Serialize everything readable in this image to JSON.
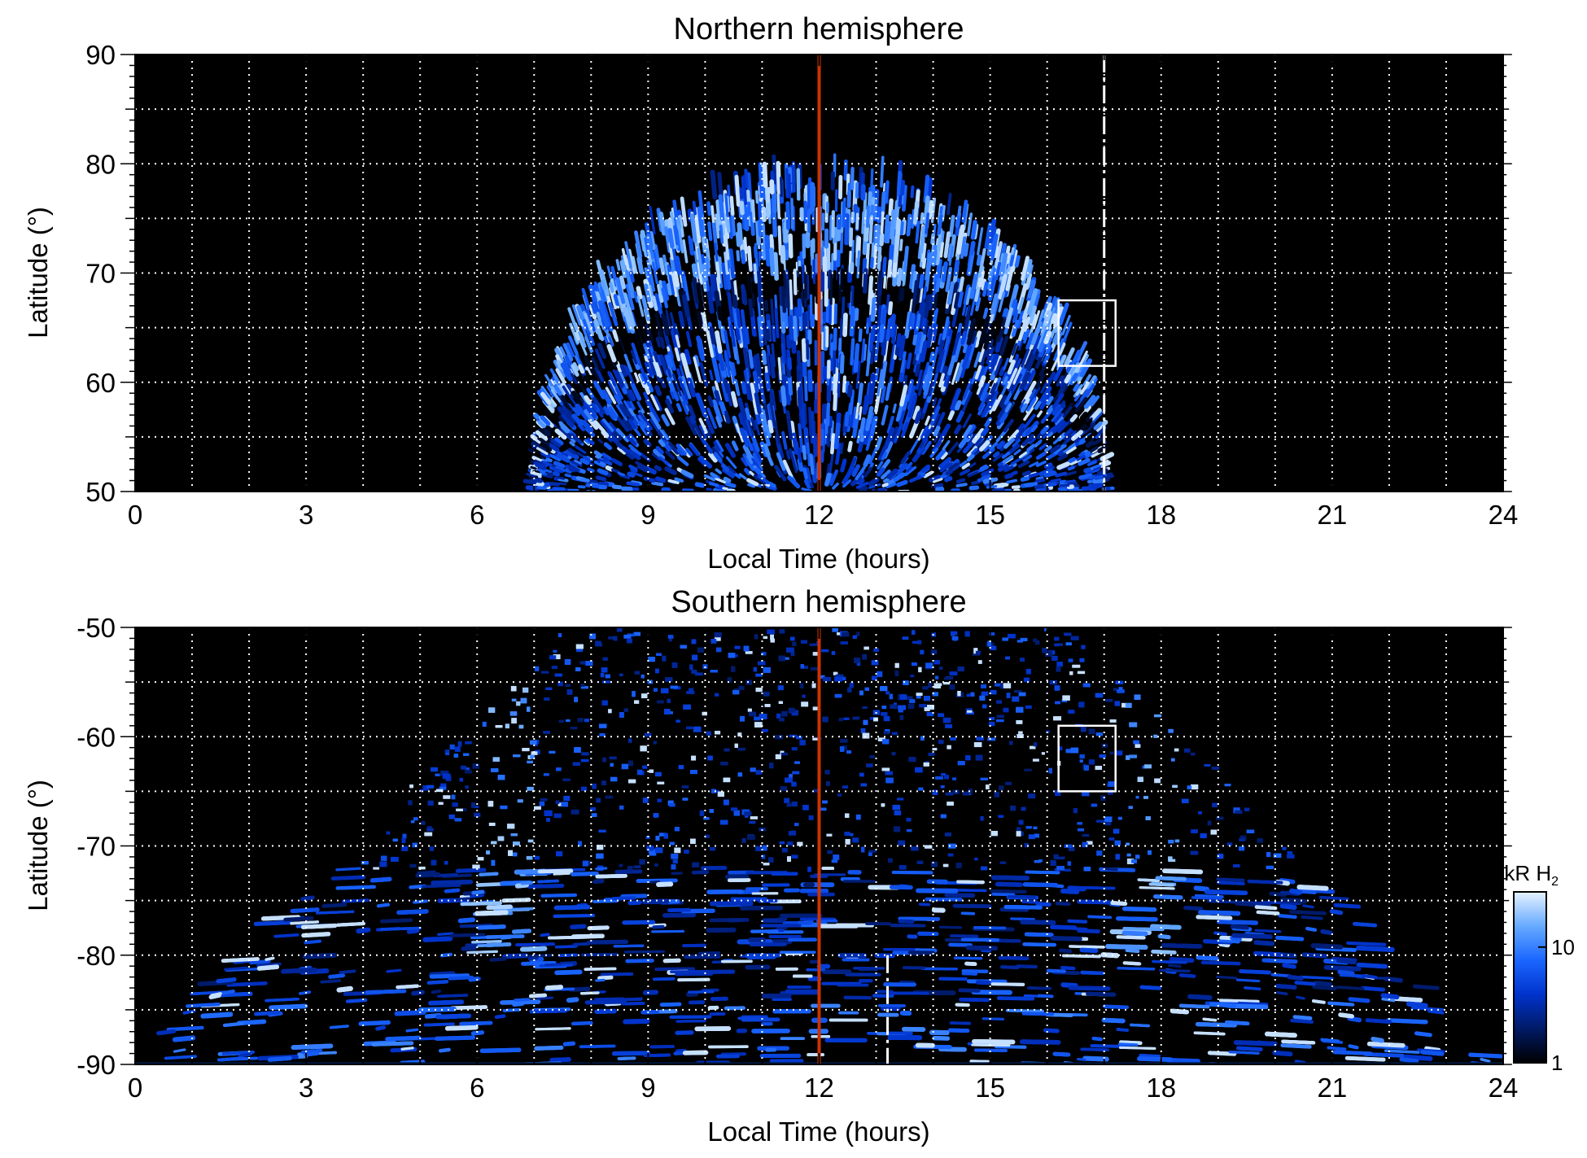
{
  "chart_data": [
    {
      "id": "north",
      "type": "heatmap",
      "title": "Northern hemisphere",
      "xlabel": "Local Time (hours)",
      "ylabel": "Latitude (°)",
      "xlim": [
        0,
        24
      ],
      "ylim": [
        50,
        90
      ],
      "x_ticks": [
        0,
        3,
        6,
        9,
        12,
        15,
        18,
        21,
        24
      ],
      "y_ticks": [
        50,
        60,
        70,
        80,
        90
      ],
      "grid": true,
      "noon_line_x": 12,
      "dashed_line_x": 17,
      "box": {
        "x": [
          16.2,
          17.2
        ],
        "y": [
          61.5,
          67.5
        ]
      },
      "emission_region": {
        "lt_min": 7,
        "lt_max": 17,
        "peak_lat": 79,
        "oval_lat": [
          68,
          76
        ]
      }
    },
    {
      "id": "south",
      "type": "heatmap",
      "title": "Southern hemisphere",
      "xlabel": "Local Time (hours)",
      "ylabel": "Latitude (°)",
      "xlim": [
        0,
        24
      ],
      "ylim": [
        -90,
        -50
      ],
      "x_ticks": [
        0,
        3,
        6,
        9,
        12,
        15,
        18,
        21,
        24
      ],
      "y_ticks": [
        -90,
        -80,
        -70,
        -60,
        -50
      ],
      "grid": true,
      "noon_line_x": 12,
      "dashed_line_x": 13.2,
      "box": {
        "x": [
          16.2,
          17.2
        ],
        "y": [
          -65,
          -59
        ]
      },
      "emission_region": {
        "bright_bands_lt": [
          6.5,
          17.8
        ],
        "edge_lat": -84
      }
    }
  ],
  "colorbar": {
    "label": "kR H",
    "label_sub": "2",
    "ticks": [
      1,
      10
    ],
    "scale": "log",
    "range": [
      1,
      30
    ],
    "colors": [
      "#000000",
      "#001a66",
      "#0033cc",
      "#1a66ff",
      "#66aaff",
      "#e6f2ff"
    ]
  },
  "colors": {
    "noon_line": "#cc3300",
    "grid": "#ffffff",
    "background": "#000000"
  }
}
